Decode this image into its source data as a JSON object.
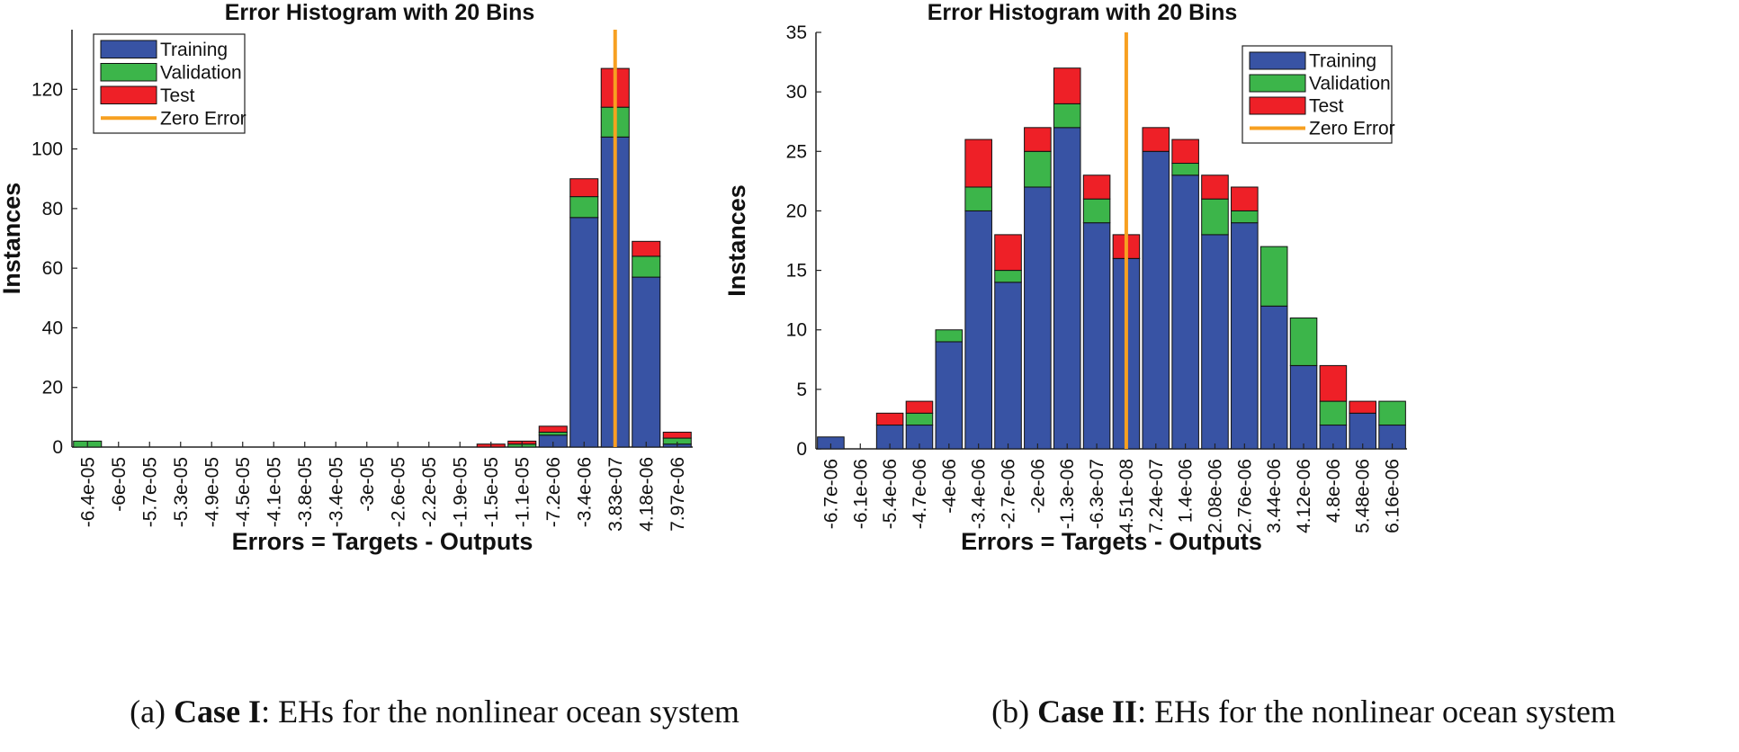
{
  "colors": {
    "training": "#3853a4",
    "validation": "#3cb54a",
    "test": "#ee2027",
    "zero_error": "#f7a021",
    "axis": "#222222"
  },
  "captions": [
    {
      "prefix": "(a) ",
      "bold": "Case I",
      "rest": ": EHs for the nonlinear ocean system"
    },
    {
      "prefix": "(b) ",
      "bold": "Case II",
      "rest": ": EHs for the nonlinear ocean system"
    }
  ],
  "chart_data": [
    {
      "type": "bar",
      "stacked": true,
      "title": "Error Histogram with 20 Bins",
      "xlabel": "Errors = Targets - Outputs",
      "ylabel": "Instances",
      "ylim": [
        0,
        140
      ],
      "yticks": [
        0,
        20,
        40,
        60,
        80,
        100,
        120
      ],
      "categories": [
        "-6.4e-05",
        "-6e-05",
        "-5.7e-05",
        "-5.3e-05",
        "-4.9e-05",
        "-4.5e-05",
        "-4.1e-05",
        "-3.8e-05",
        "-3.4e-05",
        "-3e-05",
        "-2.6e-05",
        "-2.2e-05",
        "-1.9e-05",
        "-1.5e-05",
        "-1.1e-05",
        "-7.2e-06",
        "-3.4e-06",
        "3.83e-07",
        "4.18e-06",
        "7.97e-06"
      ],
      "series": [
        {
          "name": "Training",
          "values": [
            0,
            0,
            0,
            0,
            0,
            0,
            0,
            0,
            0,
            0,
            0,
            0,
            0,
            0,
            0,
            4,
            77,
            104,
            57,
            1
          ]
        },
        {
          "name": "Validation",
          "values": [
            2,
            0,
            0,
            0,
            0,
            0,
            0,
            0,
            0,
            0,
            0,
            0,
            0,
            0,
            1,
            1,
            7,
            10,
            7,
            2
          ]
        },
        {
          "name": "Test",
          "values": [
            0,
            0,
            0,
            0,
            0,
            0,
            0,
            0,
            0,
            0,
            0,
            0,
            0,
            1,
            1,
            2,
            6,
            13,
            5,
            2
          ]
        }
      ],
      "zero_error_at": 17,
      "legend": [
        "Training",
        "Validation",
        "Test",
        "Zero Error"
      ],
      "legend_position": "top-left"
    },
    {
      "type": "bar",
      "stacked": true,
      "title": "Error Histogram with 20 Bins",
      "xlabel": "Errors = Targets - Outputs",
      "ylabel": "Instances",
      "ylim": [
        0,
        35
      ],
      "yticks": [
        0,
        5,
        10,
        15,
        20,
        25,
        30,
        35
      ],
      "categories": [
        "-6.7e-06",
        "-6.1e-06",
        "-5.4e-06",
        "-4.7e-06",
        "-4e-06",
        "-3.4e-06",
        "-2.7e-06",
        "-2e-06",
        "-1.3e-06",
        "-6.3e-07",
        "4.51e-08",
        "7.24e-07",
        "1.4e-06",
        "2.08e-06",
        "2.76e-06",
        "3.44e-06",
        "4.12e-06",
        "4.8e-06",
        "5.48e-06",
        "6.16e-06"
      ],
      "series": [
        {
          "name": "Training",
          "values": [
            1,
            0,
            2,
            2,
            9,
            20,
            14,
            22,
            27,
            19,
            16,
            25,
            23,
            18,
            19,
            12,
            7,
            2,
            3,
            2
          ]
        },
        {
          "name": "Validation",
          "values": [
            0,
            0,
            0,
            1,
            1,
            2,
            1,
            3,
            2,
            2,
            0,
            0,
            1,
            3,
            1,
            5,
            4,
            2,
            0,
            2
          ]
        },
        {
          "name": "Test",
          "values": [
            0,
            0,
            1,
            1,
            0,
            4,
            3,
            2,
            3,
            2,
            2,
            2,
            2,
            2,
            2,
            0,
            0,
            3,
            1,
            0
          ]
        }
      ],
      "zero_error_at": 10,
      "legend": [
        "Training",
        "Validation",
        "Test",
        "Zero Error"
      ],
      "legend_position": "top-right"
    }
  ]
}
